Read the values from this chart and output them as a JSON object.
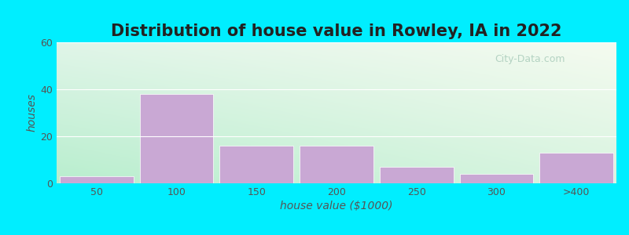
{
  "title": "Distribution of house value in Rowley, IA in 2022",
  "xlabel": "house value ($1000)",
  "ylabel": "houses",
  "bar_labels": [
    "50",
    "100",
    "150",
    "200",
    "250",
    "300",
    ">400"
  ],
  "bar_values": [
    3,
    38,
    16,
    16,
    7,
    4,
    13
  ],
  "bar_color": "#c9a8d4",
  "bar_edge_color": "#ffffff",
  "ylim": [
    0,
    60
  ],
  "yticks": [
    0,
    20,
    40,
    60
  ],
  "background_outer": "#00eeff",
  "title_fontsize": 15,
  "axis_label_fontsize": 10,
  "tick_label_fontsize": 9,
  "watermark_text": "City-Data.com",
  "bar_width": 0.92,
  "grad_bottom_left": "#b8eece",
  "grad_top_right": "#f5fbf0"
}
